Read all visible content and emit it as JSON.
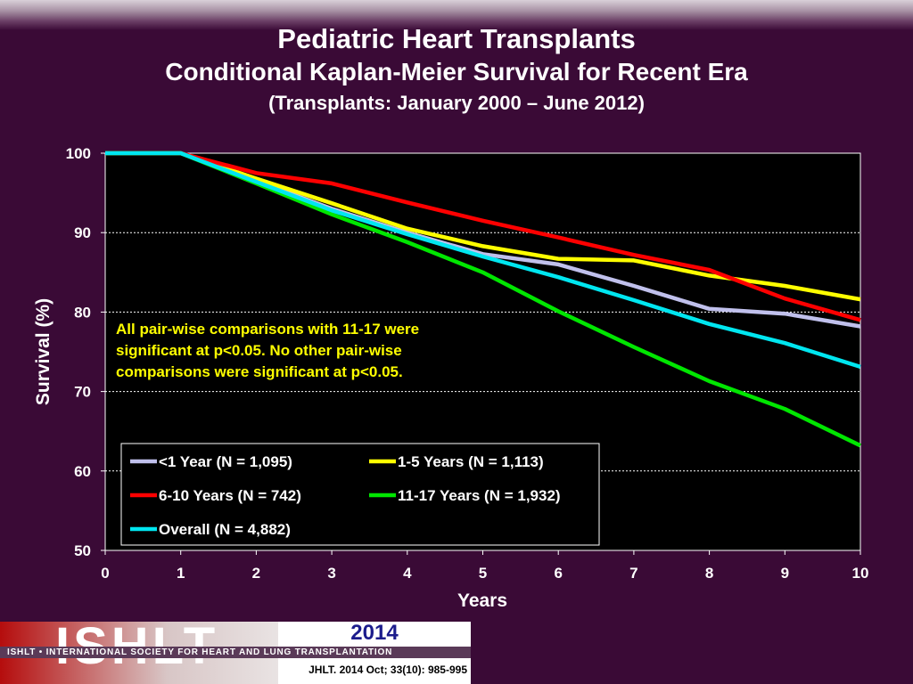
{
  "header": {
    "title": "Pediatric Heart Transplants",
    "subtitle": "Conditional Kaplan-Meier Survival for Recent Era",
    "subtitle2": "(Transplants: January 2000 – June 2012)"
  },
  "chart_data": {
    "type": "line",
    "xlabel": "Years",
    "ylabel": "Survival (%)",
    "xlim": [
      0,
      10
    ],
    "ylim": [
      50,
      100
    ],
    "xticks": [
      0,
      1,
      2,
      3,
      4,
      5,
      6,
      7,
      8,
      9,
      10
    ],
    "yticks": [
      50,
      60,
      70,
      80,
      90,
      100
    ],
    "grid": "horizontal dashed",
    "annotation": [
      "All pair-wise comparisons with 11-17 were",
      "significant at p<0.05. No other pair-wise",
      "comparisons were significant at p<0.05."
    ],
    "legend_placement": "bottom-left",
    "series": [
      {
        "name": "<1 Year (N = 1,095)",
        "color": "#c0c0ec",
        "x": [
          0,
          1,
          2,
          3,
          4,
          5,
          6,
          7,
          8,
          9,
          10
        ],
        "values": [
          100,
          100,
          96.5,
          93,
          90,
          87.3,
          86,
          83.3,
          80.4,
          79.8,
          78.2
        ]
      },
      {
        "name": "1-5 Years (N = 1,113)",
        "color": "#ffff00",
        "x": [
          0,
          1,
          2,
          3,
          4,
          5,
          6,
          7,
          8,
          9,
          10
        ],
        "values": [
          100,
          100,
          96.8,
          93.7,
          90.5,
          88.3,
          86.7,
          86.5,
          84.6,
          83.3,
          81.6
        ]
      },
      {
        "name": "6-10 Years (N = 742)",
        "color": "#ff0000",
        "x": [
          0,
          1,
          2,
          3,
          4,
          5,
          6,
          7,
          8,
          9,
          10
        ],
        "values": [
          100,
          100,
          97.5,
          96.2,
          93.8,
          91.5,
          89.4,
          87.2,
          85.3,
          81.7,
          79.0
        ]
      },
      {
        "name": "11-17 Years (N = 1,932)",
        "color": "#00e600",
        "x": [
          0,
          1,
          2,
          3,
          4,
          5,
          6,
          7,
          8,
          9,
          10
        ],
        "values": [
          100,
          100,
          96.2,
          92.3,
          88.8,
          85.0,
          80.1,
          75.6,
          71.3,
          67.8,
          63.2
        ]
      },
      {
        "name": "Overall (N = 4,882)",
        "color": "#00e6f0",
        "x": [
          0,
          1,
          2,
          3,
          4,
          5,
          6,
          7,
          8,
          9,
          10
        ],
        "values": [
          100,
          100,
          96.4,
          92.8,
          89.8,
          87.0,
          84.4,
          81.5,
          78.5,
          76.1,
          73.1
        ]
      }
    ]
  },
  "footer": {
    "logo_text": "ISHLT",
    "org_name": "ISHLT • INTERNATIONAL SOCIETY FOR HEART AND LUNG TRANSPLANTATION",
    "year": "2014",
    "citation": "JHLT. 2014 Oct; 33(10): 985-995"
  }
}
